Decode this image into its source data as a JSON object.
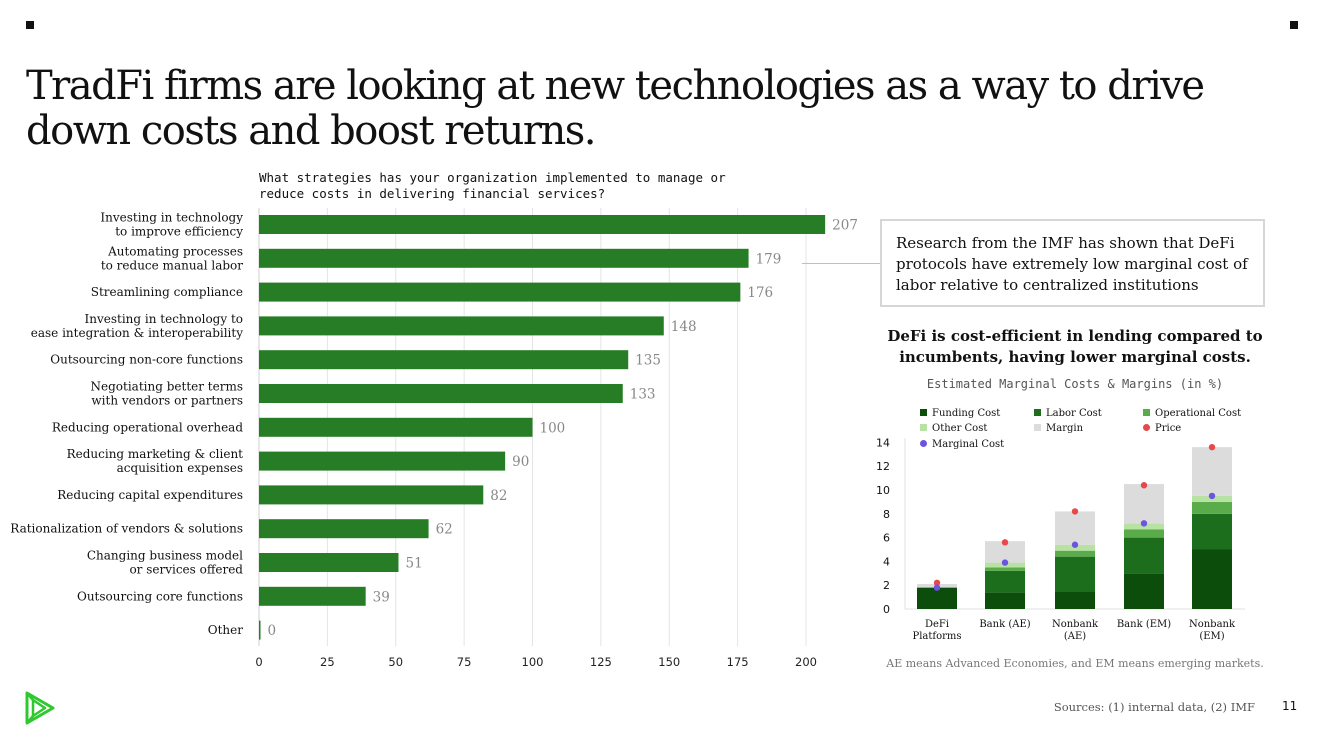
{
  "title": "TradFi firms are looking at new technologies as a way to drive down costs and boost returns.",
  "callout_text": "Research from the IMF has shown that DeFi protocols have extremely low marginal cost of labor relative to centralized institutions",
  "note": "AE means Advanced Economies, and EM means emerging markets.",
  "sources": "Sources: (1) internal data, (2) IMF",
  "page_number": "11",
  "logo_icon": "play-triangles-icon",
  "chart_data": [
    {
      "type": "bar",
      "orientation": "horizontal",
      "title": "What strategies has your organization implemented to manage or\nreduce costs in delivering financial services?",
      "categories": [
        "Investing in technology\nto improve efficiency",
        "Automating processes\nto reduce manual labor",
        "Streamlining compliance",
        "Investing in technology to\nease integration & interoperability",
        "Outsourcing non-core functions",
        "Negotiating better terms\nwith vendors or partners",
        "Reducing operational overhead",
        "Reducing marketing & client\nacquisition expenses",
        "Reducing capital expenditures",
        "Rationalization of vendors & solutions",
        "Changing business model\nor services offered",
        "Outsourcing core functions",
        "Other"
      ],
      "values": [
        207,
        179,
        176,
        148,
        135,
        133,
        100,
        90,
        82,
        62,
        51,
        39,
        0
      ],
      "xlim": [
        0,
        200
      ],
      "xticks": [
        0,
        25,
        50,
        75,
        100,
        125,
        150,
        175,
        200
      ],
      "grid": true,
      "bar_color": "#267d26"
    },
    {
      "type": "bar",
      "stacked": true,
      "title": "DeFi is cost-efficient in lending compared to incumbents, having lower marginal costs.",
      "subtitle": "Estimated Marginal Costs & Margins (in %)",
      "categories": [
        "DeFi\nPlatforms",
        "Bank (AE)",
        "Nonbank\n(AE)",
        "Bank (EM)",
        "Nonbank\n(EM)"
      ],
      "series": [
        {
          "name": "Funding Cost",
          "color": "#0c4d0c",
          "values": [
            1.8,
            1.4,
            1.5,
            3.0,
            5.0
          ]
        },
        {
          "name": "Labor Cost",
          "color": "#1c6e1c",
          "values": [
            0.0,
            1.8,
            2.9,
            3.0,
            3.0
          ]
        },
        {
          "name": "Operational Cost",
          "color": "#5aab4a",
          "values": [
            0.0,
            0.3,
            0.5,
            0.7,
            1.0
          ]
        },
        {
          "name": "Other Cost",
          "color": "#b8e2a4",
          "values": [
            0.0,
            0.4,
            0.5,
            0.5,
            0.5
          ]
        },
        {
          "name": "Margin",
          "color": "#dcdcdc",
          "values": [
            0.3,
            1.8,
            2.8,
            3.3,
            4.1
          ]
        }
      ],
      "points": [
        {
          "name": "Price",
          "color": "#e8474b",
          "values": [
            2.2,
            5.6,
            8.2,
            10.4,
            13.6
          ]
        },
        {
          "name": "Marginal Cost",
          "color": "#6a55e0",
          "values": [
            1.8,
            3.9,
            5.4,
            7.2,
            9.5
          ]
        }
      ],
      "ylim": [
        0,
        14
      ],
      "yticks": [
        0,
        2,
        4,
        6,
        8,
        10,
        12,
        14
      ],
      "legend": "top"
    }
  ]
}
